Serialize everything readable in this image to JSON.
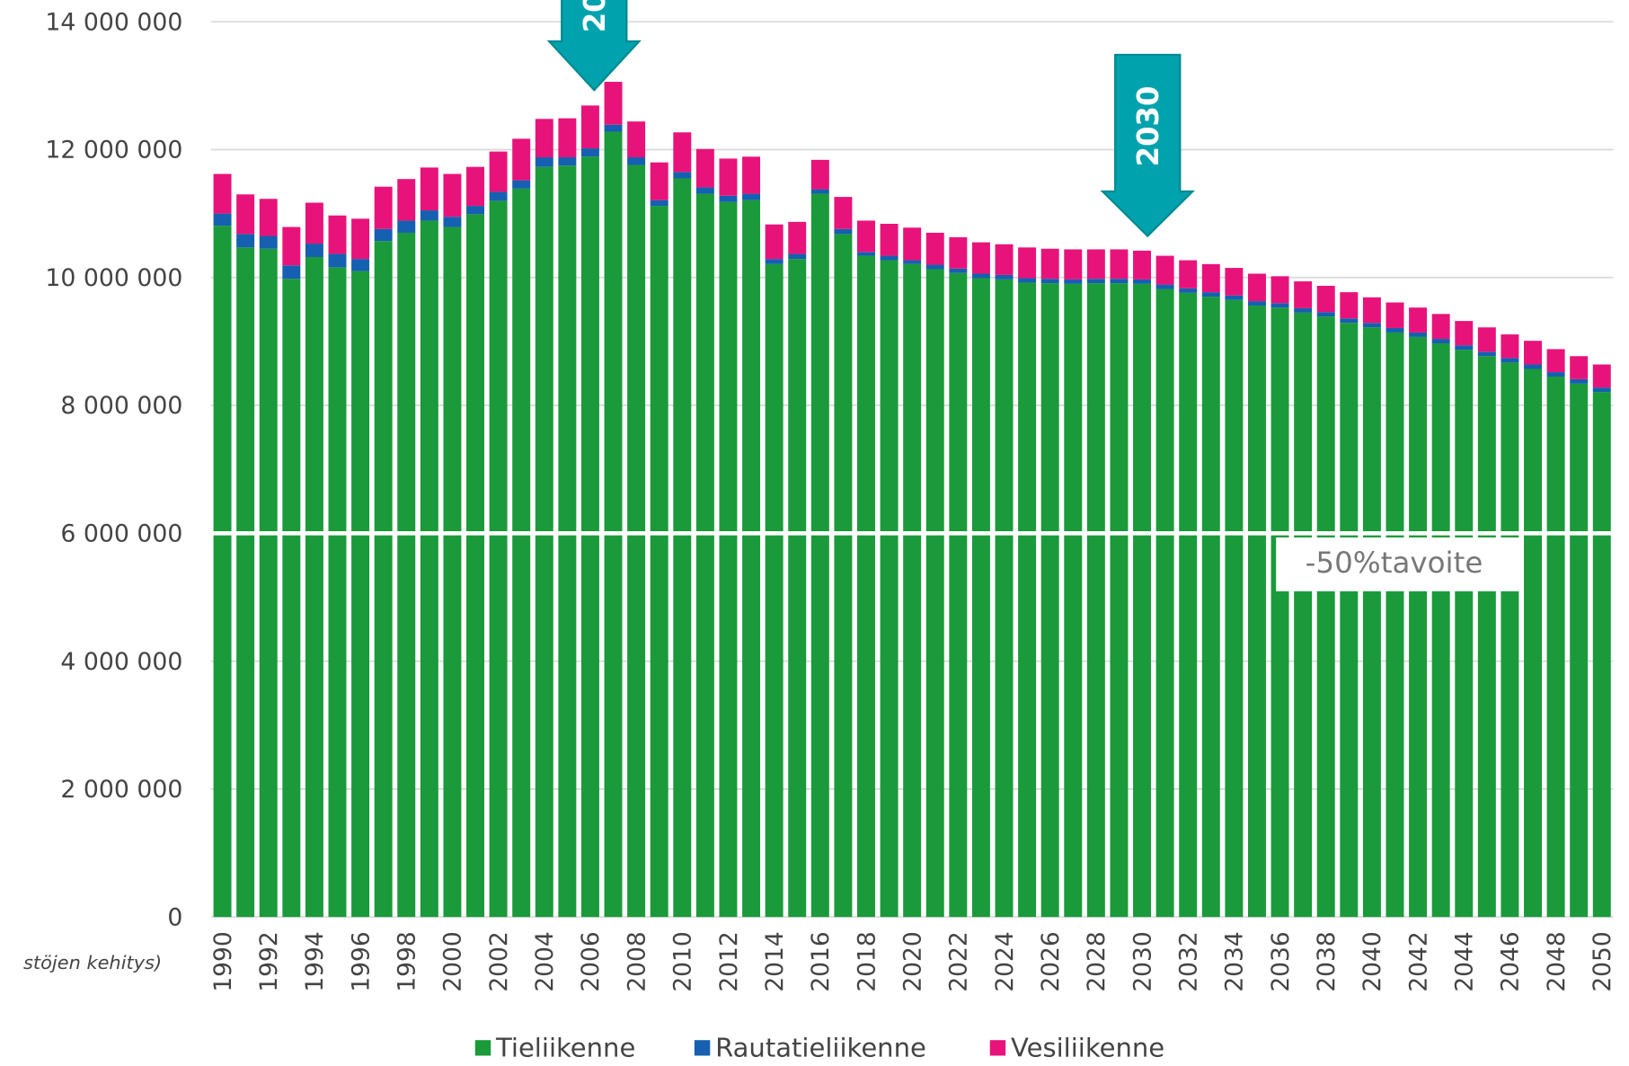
{
  "chart_data": {
    "type": "stacked_bar",
    "categories": [
      "1990",
      null,
      "1992",
      null,
      "1994",
      null,
      "1996",
      null,
      "1998",
      null,
      "2000",
      null,
      "2002",
      null,
      "2004",
      null,
      "2006",
      null,
      "2008",
      null,
      "2010",
      null,
      "2012",
      null,
      "2014",
      null,
      "2016",
      null,
      "2018",
      null,
      "2020",
      null,
      "2022",
      null,
      "2024",
      null,
      "2026",
      null,
      "2028",
      null,
      "2030",
      null,
      "2032",
      null,
      "2034",
      null,
      "2036",
      null,
      "2038",
      null,
      "2040",
      null,
      "2042",
      null,
      "2044",
      null,
      "2046",
      null,
      "2048",
      null,
      "2050"
    ],
    "series": [
      {
        "name": "Tieliikenne",
        "color": "#1a9a3a",
        "values": [
          10810000,
          10470000,
          10450000,
          9980000,
          10320000,
          10160000,
          10100000,
          10570000,
          10700000,
          10890000,
          10790000,
          10990000,
          11200000,
          11390000,
          11730000,
          11750000,
          11890000,
          12280000,
          11760000,
          11120000,
          11550000,
          11310000,
          11180000,
          11210000,
          10210000,
          10290000,
          11310000,
          10680000,
          10340000,
          10270000,
          10210000,
          10130000,
          10070000,
          9990000,
          9970000,
          9920000,
          9910000,
          9900000,
          9910000,
          9910000,
          9900000,
          9820000,
          9760000,
          9700000,
          9650000,
          9560000,
          9530000,
          9450000,
          9390000,
          9290000,
          9220000,
          9140000,
          9070000,
          8970000,
          8870000,
          8770000,
          8670000,
          8570000,
          8450000,
          8340000,
          8210000
        ]
      },
      {
        "name": "Rautatieliikenne",
        "color": "#1560b0",
        "values": [
          190000,
          210000,
          200000,
          210000,
          210000,
          210000,
          190000,
          190000,
          190000,
          160000,
          160000,
          130000,
          140000,
          130000,
          150000,
          130000,
          130000,
          110000,
          120000,
          90000,
          100000,
          100000,
          100000,
          100000,
          80000,
          80000,
          70000,
          80000,
          60000,
          70000,
          60000,
          70000,
          70000,
          70000,
          70000,
          70000,
          70000,
          70000,
          70000,
          70000,
          70000,
          70000,
          70000,
          70000,
          70000,
          70000,
          70000,
          70000,
          70000,
          70000,
          70000,
          70000,
          70000,
          70000,
          70000,
          70000,
          70000,
          70000,
          70000,
          70000,
          70000
        ]
      },
      {
        "name": "Vesiliikenne",
        "color": "#e8137a",
        "values": [
          620000,
          620000,
          580000,
          600000,
          640000,
          600000,
          630000,
          660000,
          650000,
          670000,
          670000,
          610000,
          630000,
          650000,
          600000,
          610000,
          670000,
          670000,
          560000,
          590000,
          620000,
          600000,
          580000,
          580000,
          540000,
          500000,
          460000,
          500000,
          490000,
          500000,
          510000,
          500000,
          490000,
          490000,
          480000,
          480000,
          470000,
          470000,
          460000,
          460000,
          450000,
          450000,
          440000,
          440000,
          430000,
          430000,
          420000,
          420000,
          410000,
          410000,
          400000,
          400000,
          390000,
          390000,
          380000,
          380000,
          370000,
          370000,
          360000,
          360000,
          360000
        ]
      }
    ],
    "ylim": [
      0,
      14000000
    ],
    "yticks": [
      0,
      {
        "value": 2000000,
        "label": "2 000 000"
      },
      {
        "value": 4000000,
        "label": "4 000 000"
      },
      {
        "value": 6000000,
        "label": "6 000 000"
      },
      {
        "value": 8000000,
        "label": "8 000 000"
      },
      {
        "value": 10000000,
        "label": "10 000 000"
      },
      {
        "value": 12000000,
        "label": "12 000 000"
      },
      {
        "value": 14000000,
        "label": "14 000 000"
      }
    ],
    "grid": true,
    "legend": "bottom",
    "target_value": 6000000,
    "target_label": "-50%tavoite",
    "arrow_labels": [
      "20",
      "2030"
    ],
    "footnote": "stöjen kehitys)"
  }
}
